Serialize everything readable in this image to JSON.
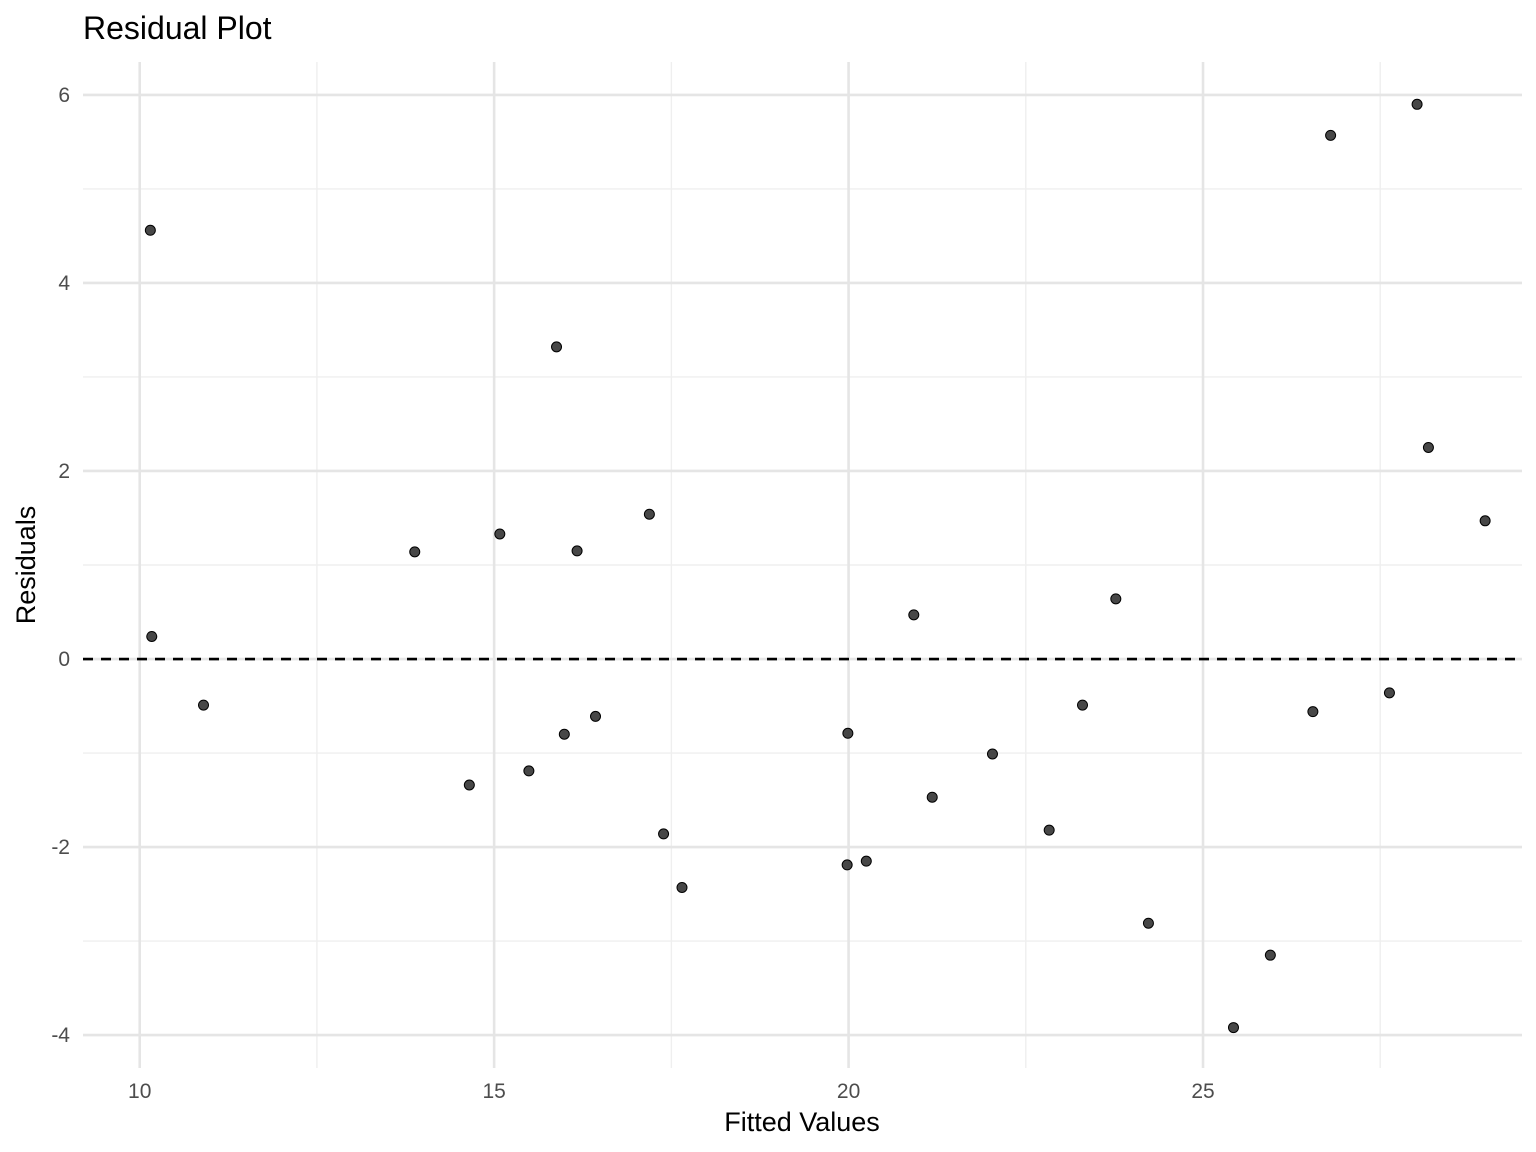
{
  "chart_data": {
    "type": "scatter",
    "title": "Residual Plot",
    "xlabel": "Fitted Values",
    "ylabel": "Residuals",
    "xlim": [
      9.2,
      29.5
    ],
    "ylim": [
      -4.35,
      6.35
    ],
    "x_ticks": [
      10,
      15,
      20,
      25
    ],
    "x_minor_ticks": [
      12.5,
      17.5,
      22.5,
      27.5
    ],
    "y_ticks": [
      -4,
      -2,
      0,
      2,
      4,
      6
    ],
    "y_minor_ticks": [
      -3,
      -1,
      1,
      3,
      5
    ],
    "x_tick_labels": [
      "10",
      "15",
      "20",
      "25"
    ],
    "y_tick_labels": [
      "-4",
      "-2",
      "0",
      "2",
      "4",
      "6"
    ],
    "reference_line": {
      "y": 0,
      "style": "dashed",
      "color": "#000000"
    },
    "grid": true,
    "point_color": "#333333",
    "points": [
      {
        "x": 10.15,
        "y": 4.56
      },
      {
        "x": 10.17,
        "y": 0.24
      },
      {
        "x": 10.9,
        "y": -0.49
      },
      {
        "x": 13.88,
        "y": 1.14
      },
      {
        "x": 14.65,
        "y": -1.34
      },
      {
        "x": 15.08,
        "y": 1.33
      },
      {
        "x": 15.49,
        "y": -1.19
      },
      {
        "x": 15.88,
        "y": 3.32
      },
      {
        "x": 15.99,
        "y": -0.8
      },
      {
        "x": 16.17,
        "y": 1.15
      },
      {
        "x": 16.43,
        "y": -0.61
      },
      {
        "x": 17.19,
        "y": 1.54
      },
      {
        "x": 17.39,
        "y": -1.86
      },
      {
        "x": 17.65,
        "y": -2.43
      },
      {
        "x": 19.98,
        "y": -2.19
      },
      {
        "x": 19.99,
        "y": -0.79
      },
      {
        "x": 20.25,
        "y": -2.15
      },
      {
        "x": 20.92,
        "y": 0.47
      },
      {
        "x": 21.18,
        "y": -1.47
      },
      {
        "x": 22.03,
        "y": -1.01
      },
      {
        "x": 22.83,
        "y": -1.82
      },
      {
        "x": 23.3,
        "y": -0.49
      },
      {
        "x": 23.77,
        "y": 0.64
      },
      {
        "x": 24.23,
        "y": -2.81
      },
      {
        "x": 25.43,
        "y": -3.92
      },
      {
        "x": 25.95,
        "y": -3.15
      },
      {
        "x": 26.55,
        "y": -0.56
      },
      {
        "x": 26.8,
        "y": 5.57
      },
      {
        "x": 27.63,
        "y": -0.36
      },
      {
        "x": 28.02,
        "y": 5.9
      },
      {
        "x": 28.18,
        "y": 2.25
      },
      {
        "x": 28.98,
        "y": 1.47
      }
    ]
  }
}
